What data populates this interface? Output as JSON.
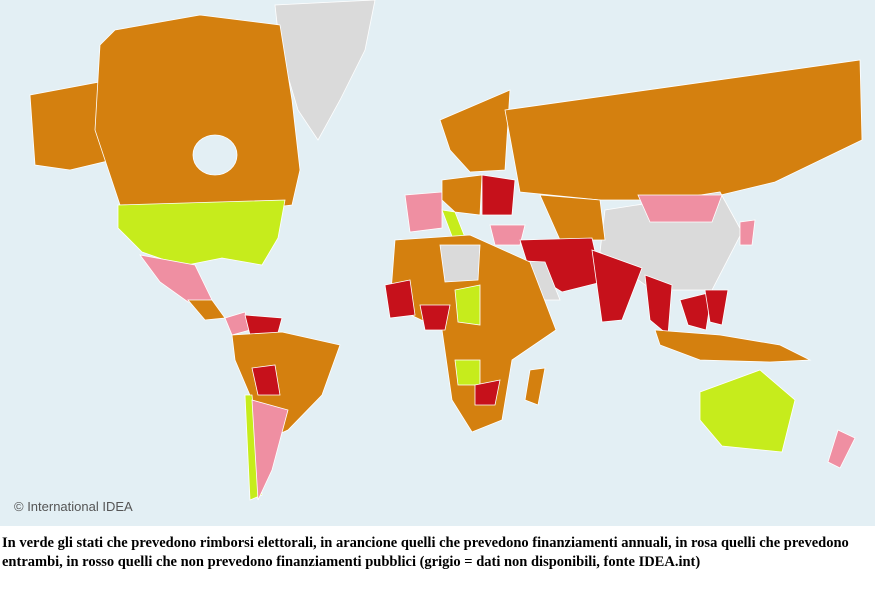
{
  "map": {
    "credit": "© International IDEA"
  },
  "caption": "In verde gli stati che prevedono rimborsi elettorali, in arancione quelli che prevedono finanziamenti annuali, in rosa quelli che prevedono entrambi, in rosso quelli che non prevedono finanziamenti pubblici (grigio = dati non disponibili, fonte IDEA.int)"
}
